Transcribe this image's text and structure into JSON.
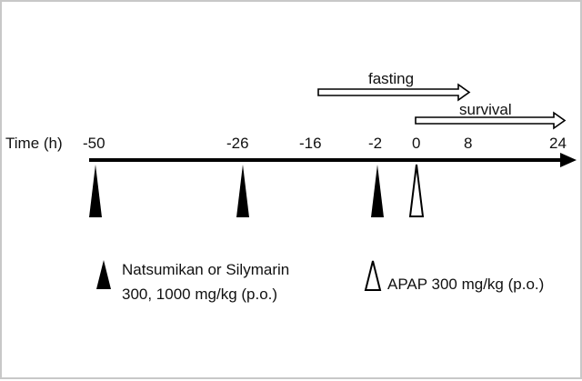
{
  "axis": {
    "label": "Time (h)",
    "ticks": [
      "-50",
      "-26",
      "-16",
      "-2",
      "0",
      "8",
      "24"
    ]
  },
  "periods": {
    "fasting": {
      "label": "fasting",
      "from": -16,
      "to": 8
    },
    "survival": {
      "label": "survival",
      "from": 0,
      "to": 24
    }
  },
  "doses": [
    {
      "time": -50,
      "marker": "filled-triangle"
    },
    {
      "time": -26,
      "marker": "filled-triangle"
    },
    {
      "time": -2,
      "marker": "filled-triangle"
    },
    {
      "time": 0,
      "marker": "open-triangle"
    }
  ],
  "legend": {
    "drug_line1": "Natsumikan or Silymarin",
    "drug_line2": "300, 1000 mg/kg (p.o.)",
    "apap": "APAP 300 mg/kg (p.o.)"
  },
  "colors": {
    "line": "#000000",
    "filled_marker": "#000000",
    "open_marker": "#ffffff",
    "border": "#c8c8c8"
  }
}
